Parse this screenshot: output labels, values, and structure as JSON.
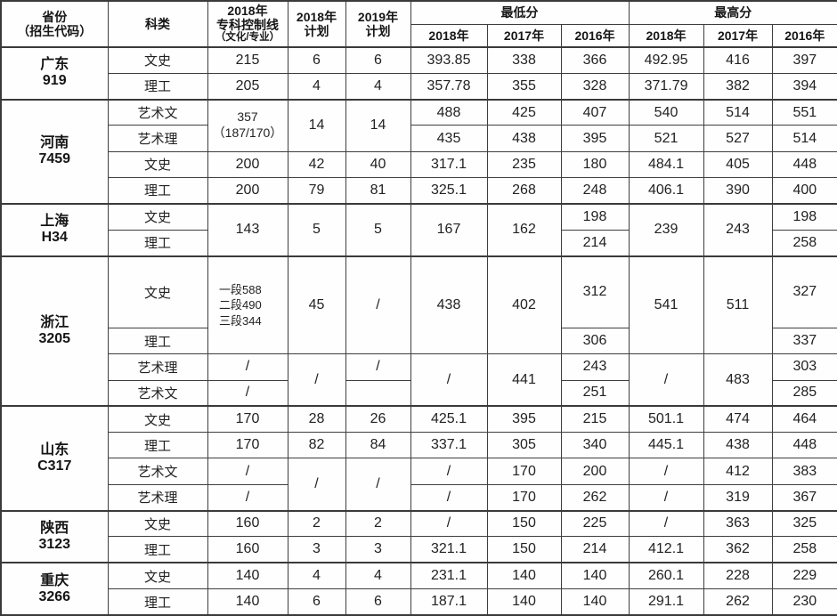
{
  "meta": {
    "description": "Admission scores table by province",
    "colors": {
      "border": "#3a3a3a",
      "text": "#1f1f1f",
      "background": "#fefefe"
    }
  },
  "table": {
    "header": {
      "province_line1": "省份",
      "province_line2": "（招生代码）",
      "subject": "科类",
      "ctrl_line1": "2018年",
      "ctrl_line2": "专科控制线",
      "ctrl_line3": "（文化/专业）",
      "plan2018_line1": "2018年",
      "plan2018_line2": "计划",
      "plan2019_line1": "2019年",
      "plan2019_line2": "计划",
      "min_group": "最低分",
      "max_group": "最高分",
      "years": [
        "2018年",
        "2017年",
        "2016年",
        "2018年",
        "2017年",
        "2016年"
      ]
    },
    "rows": [
      {
        "group_start": true,
        "cells": [
          {
            "kind": "p",
            "lines": [
              "广东",
              "919"
            ],
            "rowspan": 2
          },
          {
            "kind": "s",
            "text": "文史"
          },
          {
            "kind": "v",
            "text": "215"
          },
          {
            "kind": "v",
            "text": "6"
          },
          {
            "kind": "v",
            "text": "6"
          },
          {
            "kind": "v",
            "text": "393.85"
          },
          {
            "kind": "v",
            "text": "338"
          },
          {
            "kind": "v",
            "text": "366"
          },
          {
            "kind": "v",
            "text": "492.95"
          },
          {
            "kind": "v",
            "text": "416"
          },
          {
            "kind": "v",
            "text": "397"
          }
        ]
      },
      {
        "cells": [
          {
            "kind": "s",
            "text": "理工"
          },
          {
            "kind": "v",
            "text": "205"
          },
          {
            "kind": "v",
            "text": "4"
          },
          {
            "kind": "v",
            "text": "4"
          },
          {
            "kind": "v",
            "text": "357.78"
          },
          {
            "kind": "v",
            "text": "355"
          },
          {
            "kind": "v",
            "text": "328"
          },
          {
            "kind": "v",
            "text": "371.79"
          },
          {
            "kind": "v",
            "text": "382"
          },
          {
            "kind": "v",
            "text": "394"
          }
        ]
      },
      {
        "group_start": true,
        "cells": [
          {
            "kind": "p",
            "lines": [
              "河南",
              "7459"
            ],
            "rowspan": 4
          },
          {
            "kind": "s",
            "text": "艺术文"
          },
          {
            "kind": "c",
            "text": "357（187/170）",
            "rowspan": 2
          },
          {
            "kind": "v",
            "text": "14",
            "rowspan": 2
          },
          {
            "kind": "v",
            "text": "14",
            "rowspan": 2
          },
          {
            "kind": "v",
            "text": "488"
          },
          {
            "kind": "v",
            "text": "425"
          },
          {
            "kind": "v",
            "text": "407"
          },
          {
            "kind": "v",
            "text": "540"
          },
          {
            "kind": "v",
            "text": "514"
          },
          {
            "kind": "v",
            "text": "551"
          }
        ]
      },
      {
        "cells": [
          {
            "kind": "s",
            "text": "艺术理"
          },
          {
            "kind": "v",
            "text": "435"
          },
          {
            "kind": "v",
            "text": "438"
          },
          {
            "kind": "v",
            "text": "395"
          },
          {
            "kind": "v",
            "text": "521"
          },
          {
            "kind": "v",
            "text": "527"
          },
          {
            "kind": "v",
            "text": "514"
          }
        ]
      },
      {
        "cells": [
          {
            "kind": "s",
            "text": "文史"
          },
          {
            "kind": "v",
            "text": "200"
          },
          {
            "kind": "v",
            "text": "42"
          },
          {
            "kind": "v",
            "text": "40"
          },
          {
            "kind": "v",
            "text": "317.1"
          },
          {
            "kind": "v",
            "text": "235"
          },
          {
            "kind": "v",
            "text": "180"
          },
          {
            "kind": "v",
            "text": "484.1"
          },
          {
            "kind": "v",
            "text": "405"
          },
          {
            "kind": "v",
            "text": "448"
          }
        ]
      },
      {
        "cells": [
          {
            "kind": "s",
            "text": "理工"
          },
          {
            "kind": "v",
            "text": "200"
          },
          {
            "kind": "v",
            "text": "79"
          },
          {
            "kind": "v",
            "text": "81"
          },
          {
            "kind": "v",
            "text": "325.1"
          },
          {
            "kind": "v",
            "text": "268"
          },
          {
            "kind": "v",
            "text": "248"
          },
          {
            "kind": "v",
            "text": "406.1"
          },
          {
            "kind": "v",
            "text": "390"
          },
          {
            "kind": "v",
            "text": "400"
          }
        ]
      },
      {
        "group_start": true,
        "cells": [
          {
            "kind": "p",
            "lines": [
              "上海",
              "H34"
            ],
            "rowspan": 2
          },
          {
            "kind": "s",
            "text": "文史"
          },
          {
            "kind": "v",
            "text": "143",
            "rowspan": 2
          },
          {
            "kind": "v",
            "text": "5",
            "rowspan": 2
          },
          {
            "kind": "v",
            "text": "5",
            "rowspan": 2
          },
          {
            "kind": "v",
            "text": "167",
            "rowspan": 2
          },
          {
            "kind": "v",
            "text": "162",
            "rowspan": 2
          },
          {
            "kind": "v",
            "text": "198"
          },
          {
            "kind": "v",
            "text": "239",
            "rowspan": 2
          },
          {
            "kind": "v",
            "text": "243",
            "rowspan": 2
          },
          {
            "kind": "v",
            "text": "198"
          }
        ]
      },
      {
        "cells": [
          {
            "kind": "s",
            "text": "理工"
          },
          {
            "kind": "v",
            "text": "214"
          },
          {
            "kind": "v",
            "text": "258"
          }
        ]
      },
      {
        "group_start": true,
        "tall": true,
        "cells": [
          {
            "kind": "p",
            "lines": [
              "浙江",
              "3205"
            ],
            "rowspan": 4
          },
          {
            "kind": "s",
            "text": "文史"
          },
          {
            "kind": "m",
            "lines": [
              "一段588",
              "二段490",
              "三段344"
            ],
            "rowspan": 2
          },
          {
            "kind": "v",
            "text": "45",
            "rowspan": 2
          },
          {
            "kind": "v",
            "text": "/",
            "rowspan": 2
          },
          {
            "kind": "v",
            "text": "438",
            "rowspan": 2
          },
          {
            "kind": "v",
            "text": "402",
            "rowspan": 2
          },
          {
            "kind": "v",
            "text": "312"
          },
          {
            "kind": "v",
            "text": "541",
            "rowspan": 2
          },
          {
            "kind": "v",
            "text": "511",
            "rowspan": 2
          },
          {
            "kind": "v",
            "text": "327"
          }
        ]
      },
      {
        "cells": [
          {
            "kind": "s",
            "text": "理工"
          },
          {
            "kind": "v",
            "text": "306"
          },
          {
            "kind": "v",
            "text": "337"
          }
        ]
      },
      {
        "cells": [
          {
            "kind": "s",
            "text": "艺术理"
          },
          {
            "kind": "v",
            "text": "/"
          },
          {
            "kind": "v",
            "text": "/",
            "rowspan": 2
          },
          {
            "kind": "v",
            "text": "/"
          },
          {
            "kind": "v",
            "text": "/",
            "rowspan": 2
          },
          {
            "kind": "v",
            "text": "441",
            "rowspan": 2
          },
          {
            "kind": "v",
            "text": "243"
          },
          {
            "kind": "v",
            "text": "/",
            "rowspan": 2
          },
          {
            "kind": "v",
            "text": "483",
            "rowspan": 2
          },
          {
            "kind": "v",
            "text": "303"
          }
        ]
      },
      {
        "cells": [
          {
            "kind": "s",
            "text": "艺术文"
          },
          {
            "kind": "v",
            "text": "/"
          },
          {
            "kind": "v",
            "text": ""
          },
          {
            "kind": "v",
            "text": "251"
          },
          {
            "kind": "v",
            "text": "285"
          }
        ]
      },
      {
        "group_start": true,
        "cells": [
          {
            "kind": "p",
            "lines": [
              "山东",
              "C317"
            ],
            "rowspan": 4
          },
          {
            "kind": "s",
            "text": "文史"
          },
          {
            "kind": "v",
            "text": "170"
          },
          {
            "kind": "v",
            "text": "28"
          },
          {
            "kind": "v",
            "text": "26"
          },
          {
            "kind": "v",
            "text": "425.1"
          },
          {
            "kind": "v",
            "text": "395"
          },
          {
            "kind": "v",
            "text": "215"
          },
          {
            "kind": "v",
            "text": "501.1"
          },
          {
            "kind": "v",
            "text": "474"
          },
          {
            "kind": "v",
            "text": "464"
          }
        ]
      },
      {
        "cells": [
          {
            "kind": "s",
            "text": "理工"
          },
          {
            "kind": "v",
            "text": "170"
          },
          {
            "kind": "v",
            "text": "82"
          },
          {
            "kind": "v",
            "text": "84"
          },
          {
            "kind": "v",
            "text": "337.1"
          },
          {
            "kind": "v",
            "text": "305"
          },
          {
            "kind": "v",
            "text": "340"
          },
          {
            "kind": "v",
            "text": "445.1"
          },
          {
            "kind": "v",
            "text": "438"
          },
          {
            "kind": "v",
            "text": "448"
          }
        ]
      },
      {
        "cells": [
          {
            "kind": "s",
            "text": "艺术文"
          },
          {
            "kind": "v",
            "text": "/"
          },
          {
            "kind": "v",
            "text": "/",
            "rowspan": 2
          },
          {
            "kind": "v",
            "text": "/",
            "rowspan": 2
          },
          {
            "kind": "v",
            "text": "/"
          },
          {
            "kind": "v",
            "text": "170"
          },
          {
            "kind": "v",
            "text": "200"
          },
          {
            "kind": "v",
            "text": "/"
          },
          {
            "kind": "v",
            "text": "412"
          },
          {
            "kind": "v",
            "text": "383"
          }
        ]
      },
      {
        "cells": [
          {
            "kind": "s",
            "text": "艺术理"
          },
          {
            "kind": "v",
            "text": "/"
          },
          {
            "kind": "v",
            "text": "/"
          },
          {
            "kind": "v",
            "text": "170"
          },
          {
            "kind": "v",
            "text": "262"
          },
          {
            "kind": "v",
            "text": "/"
          },
          {
            "kind": "v",
            "text": "319"
          },
          {
            "kind": "v",
            "text": "367"
          }
        ]
      },
      {
        "group_start": true,
        "cells": [
          {
            "kind": "p",
            "lines": [
              "陕西",
              "3123"
            ],
            "rowspan": 2
          },
          {
            "kind": "s",
            "text": "文史"
          },
          {
            "kind": "v",
            "text": "160"
          },
          {
            "kind": "v",
            "text": "2"
          },
          {
            "kind": "v",
            "text": "2"
          },
          {
            "kind": "v",
            "text": "/"
          },
          {
            "kind": "v",
            "text": "150"
          },
          {
            "kind": "v",
            "text": "225"
          },
          {
            "kind": "v",
            "text": "/"
          },
          {
            "kind": "v",
            "text": "363"
          },
          {
            "kind": "v",
            "text": "325"
          }
        ]
      },
      {
        "cells": [
          {
            "kind": "s",
            "text": "理工"
          },
          {
            "kind": "v",
            "text": "160"
          },
          {
            "kind": "v",
            "text": "3"
          },
          {
            "kind": "v",
            "text": "3"
          },
          {
            "kind": "v",
            "text": "321.1"
          },
          {
            "kind": "v",
            "text": "150"
          },
          {
            "kind": "v",
            "text": "214"
          },
          {
            "kind": "v",
            "text": "412.1"
          },
          {
            "kind": "v",
            "text": "362"
          },
          {
            "kind": "v",
            "text": "258"
          }
        ]
      },
      {
        "group_start": true,
        "cells": [
          {
            "kind": "p",
            "lines": [
              "重庆",
              "3266"
            ],
            "rowspan": 2
          },
          {
            "kind": "s",
            "text": "文史"
          },
          {
            "kind": "v",
            "text": "140"
          },
          {
            "kind": "v",
            "text": "4"
          },
          {
            "kind": "v",
            "text": "4"
          },
          {
            "kind": "v",
            "text": "231.1"
          },
          {
            "kind": "v",
            "text": "140"
          },
          {
            "kind": "v",
            "text": "140"
          },
          {
            "kind": "v",
            "text": "260.1"
          },
          {
            "kind": "v",
            "text": "228"
          },
          {
            "kind": "v",
            "text": "229"
          }
        ]
      },
      {
        "cells": [
          {
            "kind": "s",
            "text": "理工"
          },
          {
            "kind": "v",
            "text": "140"
          },
          {
            "kind": "v",
            "text": "6"
          },
          {
            "kind": "v",
            "text": "6"
          },
          {
            "kind": "v",
            "text": "187.1"
          },
          {
            "kind": "v",
            "text": "140"
          },
          {
            "kind": "v",
            "text": "140"
          },
          {
            "kind": "v",
            "text": "291.1"
          },
          {
            "kind": "v",
            "text": "262"
          },
          {
            "kind": "v",
            "text": "230"
          }
        ]
      }
    ]
  }
}
